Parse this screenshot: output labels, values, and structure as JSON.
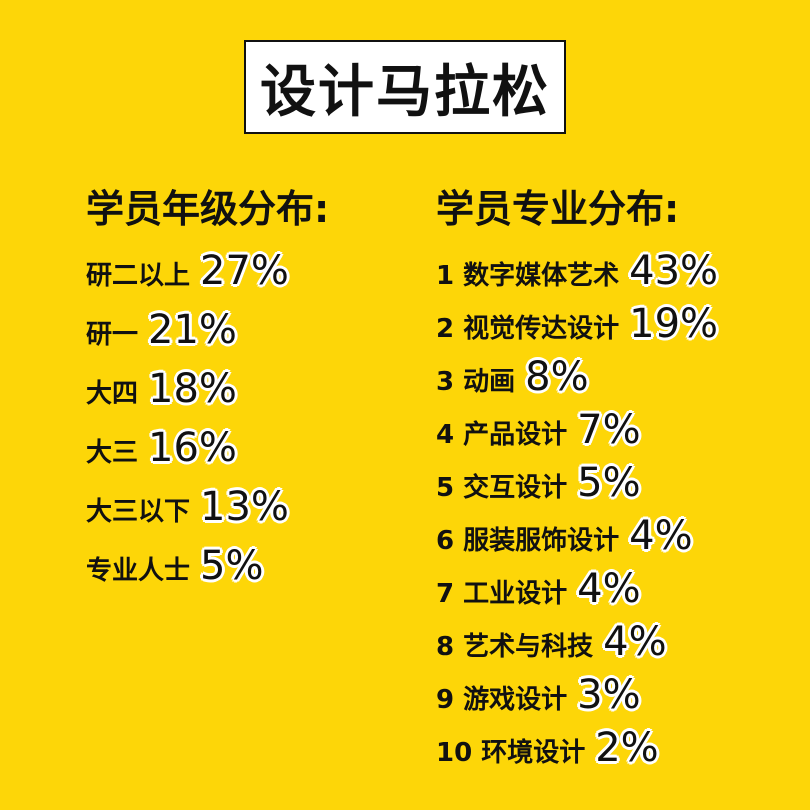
{
  "title": "设计马拉松",
  "colors": {
    "background": "#FDD608",
    "text": "#111111",
    "outline": "#FFFFFF"
  },
  "grade": {
    "heading": "学员年级分布:",
    "items": [
      {
        "label": "研二以上",
        "pct": "27%"
      },
      {
        "label": "研一",
        "pct": "21%"
      },
      {
        "label": "大四",
        "pct": "18%"
      },
      {
        "label": "大三",
        "pct": "16%"
      },
      {
        "label": "大三以下",
        "pct": "13%"
      },
      {
        "label": "专业人士",
        "pct": "5%"
      }
    ]
  },
  "major": {
    "heading": "学员专业分布:",
    "items": [
      {
        "label": "1 数字媒体艺术",
        "pct": "43%"
      },
      {
        "label": "2 视觉传达设计",
        "pct": "19%"
      },
      {
        "label": "3 动画",
        "pct": "8%"
      },
      {
        "label": "4 产品设计",
        "pct": "7%"
      },
      {
        "label": "5 交互设计",
        "pct": "5%"
      },
      {
        "label": "6 服装服饰设计",
        "pct": "4%"
      },
      {
        "label": "7 工业设计",
        "pct": "4%"
      },
      {
        "label": "8 艺术与科技",
        "pct": "4%"
      },
      {
        "label": "9 游戏设计",
        "pct": "3%"
      },
      {
        "label": "10 环境设计",
        "pct": "2%"
      }
    ]
  }
}
